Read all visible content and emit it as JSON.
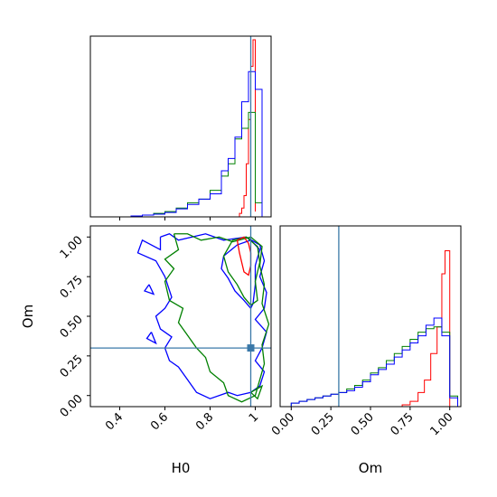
{
  "chart_data": {
    "type": "corner",
    "parameters": [
      "H0",
      "Om"
    ],
    "truth": {
      "H0": 0.98,
      "Om": 0.3
    },
    "colors": {
      "red": "#ff0000",
      "green": "#008000",
      "blue": "#0000ff",
      "truth": "#3a78a8"
    },
    "panels": [
      {
        "name": "h0-marginal",
        "type": "histogram",
        "xlim": [
          0.27,
          1.07
        ],
        "x_tick_labels": [],
        "y_ticks_shown": false,
        "series": [
          {
            "color": "red",
            "bins": [
              0.93,
              0.94,
              0.95,
              0.96,
              0.97,
              0.98,
              0.99,
              1.0
            ],
            "heights": [
              0.02,
              0.05,
              0.12,
              0.3,
              0.55,
              0.85,
              1.0,
              0.03
            ]
          },
          {
            "color": "green",
            "bins": [
              0.45,
              0.5,
              0.55,
              0.6,
              0.65,
              0.7,
              0.75,
              0.8,
              0.85,
              0.88,
              0.91,
              0.94,
              0.97,
              1.0,
              1.03
            ],
            "heights": [
              0.005,
              0.01,
              0.02,
              0.03,
              0.05,
              0.08,
              0.1,
              0.15,
              0.23,
              0.3,
              0.44,
              0.5,
              0.59,
              0.08
            ]
          },
          {
            "color": "blue",
            "bins": [
              0.45,
              0.5,
              0.55,
              0.6,
              0.65,
              0.7,
              0.75,
              0.8,
              0.85,
              0.88,
              0.91,
              0.94,
              0.97,
              1.0,
              1.03
            ],
            "heights": [
              0.005,
              0.01,
              0.015,
              0.025,
              0.045,
              0.07,
              0.1,
              0.13,
              0.26,
              0.33,
              0.45,
              0.65,
              0.82,
              0.72
            ]
          }
        ]
      },
      {
        "name": "om-h0-contour",
        "type": "contour",
        "xlim": [
          0.27,
          1.07
        ],
        "ylim": [
          -0.07,
          1.07
        ],
        "x_ticks": [
          0.4,
          0.6,
          0.8,
          1.0
        ],
        "y_ticks": [
          0.0,
          0.25,
          0.5,
          0.75,
          1.0
        ],
        "y_tick_labels": [
          "0.00",
          "0.25",
          "0.50",
          "0.75",
          "1.00"
        ],
        "x_label": "H0",
        "y_label": "Om",
        "contours": [
          {
            "color": "blue",
            "points": [
              [
                0.58,
                1.0
              ],
              [
                0.58,
                0.92
              ],
              [
                0.5,
                0.98
              ],
              [
                0.48,
                0.9
              ],
              [
                0.56,
                0.85
              ],
              [
                0.6,
                0.75
              ],
              [
                0.63,
                0.62
              ],
              [
                0.6,
                0.55
              ],
              [
                0.56,
                0.5
              ],
              [
                0.58,
                0.42
              ],
              [
                0.63,
                0.37
              ],
              [
                0.6,
                0.3
              ],
              [
                0.62,
                0.22
              ],
              [
                0.66,
                0.18
              ],
              [
                0.7,
                0.1
              ],
              [
                0.74,
                0.02
              ],
              [
                0.8,
                -0.02
              ],
              [
                0.88,
                0.02
              ],
              [
                0.92,
                0.0
              ],
              [
                0.98,
                0.02
              ],
              [
                1.02,
                0.06
              ],
              [
                1.04,
                0.15
              ],
              [
                1.0,
                0.22
              ],
              [
                1.03,
                0.3
              ],
              [
                1.05,
                0.4
              ],
              [
                1.0,
                0.48
              ],
              [
                1.04,
                0.55
              ],
              [
                1.05,
                0.65
              ],
              [
                1.02,
                0.75
              ],
              [
                1.04,
                0.85
              ],
              [
                1.02,
                0.95
              ],
              [
                0.96,
                1.0
              ],
              [
                0.86,
                0.98
              ],
              [
                0.78,
                1.02
              ],
              [
                0.66,
                0.98
              ],
              [
                0.62,
                1.02
              ],
              [
                0.58,
                1.0
              ]
            ]
          },
          {
            "color": "blue",
            "points": [
              [
                0.86,
                0.88
              ],
              [
                0.92,
                0.95
              ],
              [
                0.98,
                0.98
              ],
              [
                1.02,
                0.92
              ],
              [
                1.0,
                0.82
              ],
              [
                1.0,
                0.7
              ],
              [
                0.99,
                0.58
              ],
              [
                0.98,
                0.55
              ],
              [
                0.95,
                0.6
              ],
              [
                0.91,
                0.66
              ],
              [
                0.88,
                0.74
              ],
              [
                0.85,
                0.8
              ],
              [
                0.86,
                0.88
              ]
            ]
          },
          {
            "color": "blue",
            "points": [
              [
                0.54,
                0.4
              ],
              [
                0.56,
                0.33
              ],
              [
                0.52,
                0.36
              ],
              [
                0.54,
                0.4
              ]
            ]
          },
          {
            "color": "blue",
            "points": [
              [
                0.53,
                0.7
              ],
              [
                0.55,
                0.64
              ],
              [
                0.51,
                0.66
              ],
              [
                0.53,
                0.7
              ]
            ]
          },
          {
            "color": "green",
            "points": [
              [
                0.64,
                1.02
              ],
              [
                0.66,
                0.92
              ],
              [
                0.6,
                0.86
              ],
              [
                0.64,
                0.8
              ],
              [
                0.6,
                0.72
              ],
              [
                0.62,
                0.6
              ],
              [
                0.68,
                0.55
              ],
              [
                0.66,
                0.46
              ],
              [
                0.7,
                0.38
              ],
              [
                0.74,
                0.3
              ],
              [
                0.78,
                0.24
              ],
              [
                0.8,
                0.15
              ],
              [
                0.86,
                0.08
              ],
              [
                0.88,
                0.0
              ],
              [
                0.94,
                -0.04
              ],
              [
                1.0,
                0.0
              ],
              [
                1.02,
                0.1
              ],
              [
                1.04,
                0.2
              ],
              [
                1.03,
                0.32
              ],
              [
                1.06,
                0.45
              ],
              [
                1.03,
                0.58
              ],
              [
                1.04,
                0.7
              ],
              [
                1.02,
                0.82
              ],
              [
                1.03,
                0.94
              ],
              [
                0.98,
                1.0
              ],
              [
                0.9,
                0.97
              ],
              [
                0.84,
                1.0
              ],
              [
                0.76,
                0.98
              ],
              [
                0.7,
                1.02
              ],
              [
                0.64,
                1.02
              ]
            ]
          },
          {
            "color": "green",
            "points": [
              [
                0.86,
                0.88
              ],
              [
                0.9,
                0.98
              ],
              [
                0.96,
                1.0
              ],
              [
                1.01,
                0.94
              ],
              [
                1.02,
                0.84
              ],
              [
                1.0,
                0.72
              ],
              [
                1.01,
                0.6
              ],
              [
                0.98,
                0.57
              ],
              [
                0.95,
                0.62
              ],
              [
                0.92,
                0.7
              ],
              [
                0.88,
                0.78
              ],
              [
                0.86,
                0.88
              ]
            ]
          },
          {
            "color": "green",
            "points": [
              [
                0.98,
                0.02
              ],
              [
                1.03,
                0.06
              ],
              [
                1.01,
                -0.02
              ],
              [
                0.98,
                0.02
              ]
            ]
          },
          {
            "color": "red",
            "points": [
              [
                0.92,
                0.98
              ],
              [
                0.95,
                1.0
              ],
              [
                0.97,
                0.96
              ],
              [
                0.98,
                0.9
              ],
              [
                0.98,
                0.82
              ],
              [
                0.97,
                0.76
              ],
              [
                0.95,
                0.78
              ],
              [
                0.94,
                0.84
              ],
              [
                0.93,
                0.9
              ],
              [
                0.92,
                0.98
              ]
            ]
          }
        ]
      },
      {
        "name": "om-marginal",
        "type": "histogram",
        "xlim": [
          -0.07,
          1.07
        ],
        "x_ticks": [
          0.0,
          0.25,
          0.5,
          0.75,
          1.0
        ],
        "x_tick_labels": [
          "0.00",
          "0.25",
          "0.50",
          "0.75",
          "1.00"
        ],
        "x_label": "Om",
        "y_ticks_shown": false,
        "series": [
          {
            "color": "red",
            "bins": [
              0.7,
              0.75,
              0.8,
              0.84,
              0.88,
              0.92,
              0.95,
              0.97,
              1.0
            ],
            "heights": [
              0.01,
              0.03,
              0.08,
              0.15,
              0.3,
              0.45,
              0.75,
              0.88
            ]
          },
          {
            "color": "green",
            "bins": [
              0.0,
              0.05,
              0.1,
              0.15,
              0.2,
              0.25,
              0.3,
              0.35,
              0.4,
              0.45,
              0.5,
              0.55,
              0.6,
              0.65,
              0.7,
              0.75,
              0.8,
              0.85,
              0.9,
              0.95,
              1.0,
              1.05
            ],
            "heights": [
              0.02,
              0.03,
              0.04,
              0.05,
              0.06,
              0.07,
              0.08,
              0.1,
              0.12,
              0.15,
              0.19,
              0.22,
              0.26,
              0.3,
              0.34,
              0.38,
              0.42,
              0.44,
              0.45,
              0.42,
              0.06
            ]
          },
          {
            "color": "blue",
            "bins": [
              0.0,
              0.05,
              0.1,
              0.15,
              0.2,
              0.25,
              0.3,
              0.35,
              0.4,
              0.45,
              0.5,
              0.55,
              0.6,
              0.65,
              0.7,
              0.75,
              0.8,
              0.85,
              0.9,
              0.95,
              1.0,
              1.05
            ],
            "heights": [
              0.02,
              0.03,
              0.04,
              0.05,
              0.06,
              0.07,
              0.08,
              0.09,
              0.11,
              0.14,
              0.18,
              0.21,
              0.24,
              0.28,
              0.32,
              0.36,
              0.4,
              0.46,
              0.5,
              0.4,
              0.05
            ]
          }
        ]
      }
    ]
  }
}
